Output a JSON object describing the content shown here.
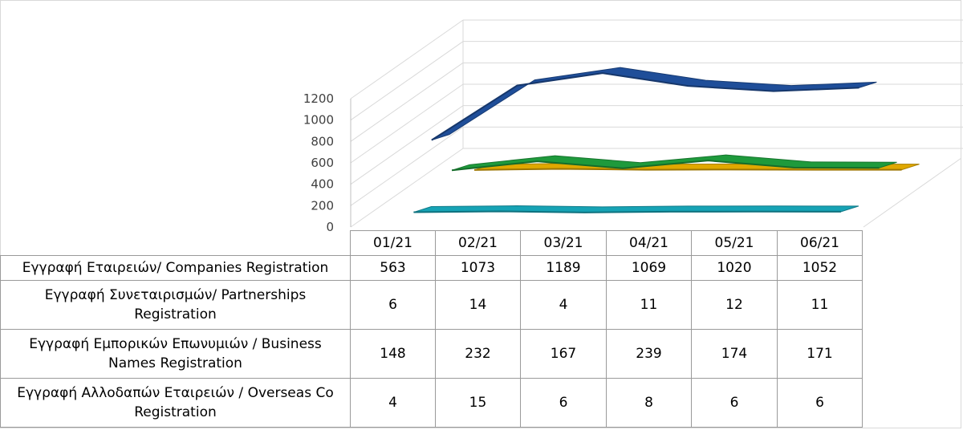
{
  "chart_data": {
    "type": "line",
    "categories": [
      "01/21",
      "02/21",
      "03/21",
      "04/21",
      "05/21",
      "06/21"
    ],
    "series": [
      {
        "name": "Εγγραφή Εταιρειών/ Companies Registration",
        "values": [
          563,
          1073,
          1189,
          1069,
          1020,
          1052
        ],
        "color": "#1f4e99"
      },
      {
        "name": "Εγγραφή Συνεταιρισμών/ Partnerships Registration",
        "values": [
          6,
          14,
          4,
          11,
          12,
          11
        ],
        "color": "#16a3b5"
      },
      {
        "name": "Εγγραφή Εμπορικών Επωνυμιών / Business Names Registration",
        "values": [
          148,
          232,
          167,
          239,
          174,
          171
        ],
        "color": "#1e9a3c"
      },
      {
        "name": "Εγγραφή Αλλοδαπών Εταιρειών / Overseas Co Registration",
        "values": [
          4,
          15,
          6,
          8,
          6,
          6
        ],
        "color": "#e0a800"
      }
    ],
    "ylim": [
      0,
      1200
    ],
    "yticks": [
      0,
      200,
      400,
      600,
      800,
      1000,
      1200
    ],
    "grid": true,
    "legend": "data-table-below"
  }
}
